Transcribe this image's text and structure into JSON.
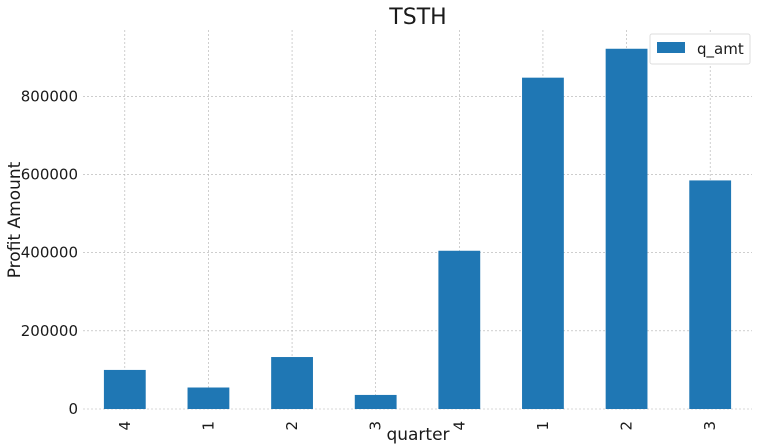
{
  "chart_data": {
    "type": "bar",
    "title": "TSTH",
    "xlabel": "quarter",
    "ylabel": "Profit Amount",
    "categories": [
      "4",
      "1",
      "2",
      "3",
      "4",
      "1",
      "2",
      "3"
    ],
    "series": [
      {
        "name": "q_amt",
        "values": [
          100000,
          55000,
          133000,
          36000,
          405000,
          848000,
          922000,
          585000
        ]
      }
    ],
    "yticks": [
      0,
      200000,
      400000,
      600000,
      800000
    ],
    "ylim": [
      0,
      970000
    ],
    "grid": true,
    "legend_position": "top-right",
    "colors": {
      "bar": "#1f77b4"
    }
  }
}
